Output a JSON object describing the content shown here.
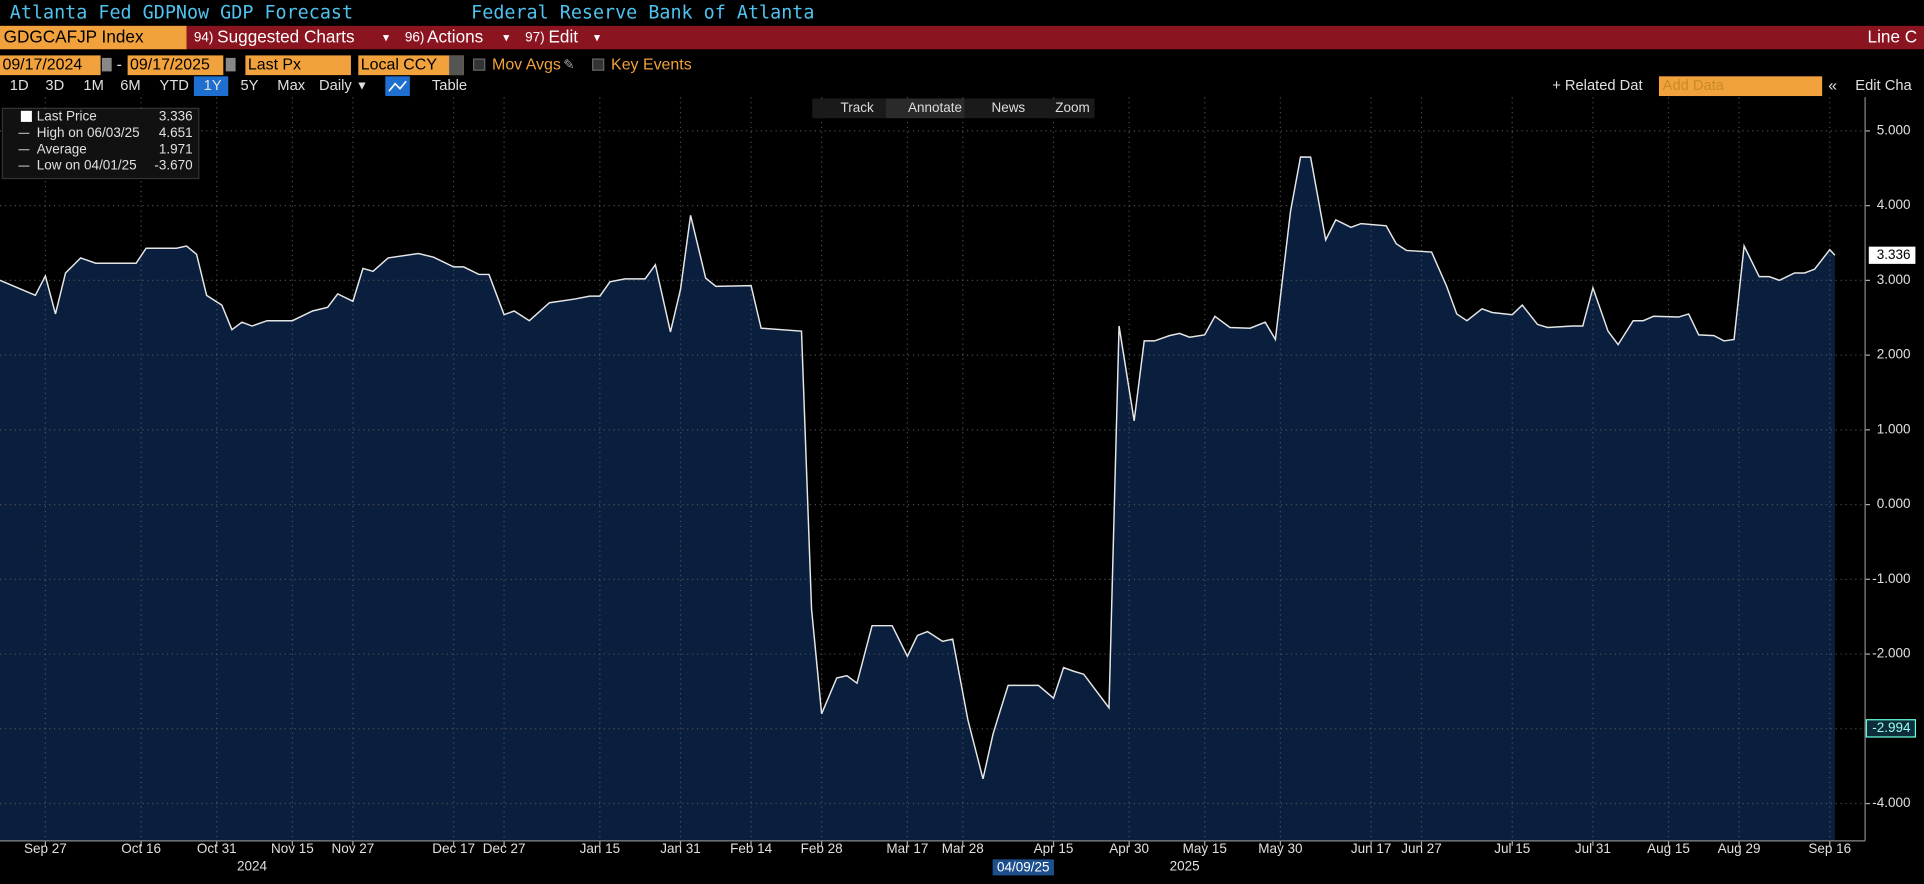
{
  "header": {
    "title": "Atlanta Fed GDPNow GDP Forecast",
    "source": "Federal Reserve Bank of Atlanta"
  },
  "toolbar": {
    "ticker": "GDGCAFJP Index",
    "menus": [
      {
        "key": "94)",
        "label": "Suggested Charts"
      },
      {
        "key": "96)",
        "label": "Actions"
      },
      {
        "key": "97)",
        "label": "Edit"
      }
    ],
    "right": "Line C"
  },
  "controls": {
    "start": "09/17/2024",
    "separator": "-",
    "end": "09/17/2025",
    "field": "Last Px",
    "currency": "Local CCY",
    "options": [
      "Mov Avgs",
      "Key Events"
    ]
  },
  "ranges": [
    "1D",
    "3D",
    "1M",
    "6M",
    "YTD",
    "1Y",
    "5Y",
    "Max"
  ],
  "frequency": "Daily",
  "table": "Table",
  "related": "+ Related Dat",
  "add_data": "Add Data",
  "edit_chart": "Edit Cha",
  "chart_tools": [
    "Track",
    "Annotate",
    "News",
    "Zoom"
  ],
  "legend": [
    {
      "label": "Last Price",
      "value": "3.336"
    },
    {
      "label": "High on 06/03/25",
      "value": "4.651"
    },
    {
      "label": "Average",
      "value": "1.971"
    },
    {
      "label": "Low on 04/01/25",
      "value": "-3.670"
    }
  ],
  "chart_data": {
    "type": "area",
    "name": "Last Price",
    "color": "#e6e6e6",
    "fill": "#0a1f3d",
    "grid": true,
    "x": [
      1,
      8,
      10,
      12,
      14,
      17,
      20,
      28,
      30,
      36,
      38,
      40,
      42,
      45,
      47,
      49,
      51,
      54,
      59,
      63,
      66,
      68,
      71,
      73,
      75,
      78,
      84,
      87,
      91,
      93,
      96,
      98,
      101,
      103,
      106,
      110,
      115,
      118,
      120,
      122,
      125,
      129,
      131,
      134,
      136,
      138,
      141,
      143,
      150,
      152,
      160,
      162,
      164,
      167,
      169,
      171,
      174,
      178,
      181,
      183,
      185,
      188,
      190,
      193,
      196,
      198,
      199,
      201,
      207,
      210,
      212,
      214,
      216,
      221,
      223,
      226,
      228,
      230,
      233,
      235,
      237,
      240,
      242,
      245,
      249,
      252,
      254,
      257,
      259,
      261,
      264,
      266,
      269,
      271,
      276,
      278,
      280,
      285,
      288,
      290,
      292,
      295,
      297,
      301,
      303,
      306,
      308,
      313,
      315,
      317,
      320,
      322,
      325,
      327,
      329,
      334,
      336,
      338,
      341,
      343,
      345,
      347,
      350,
      352,
      354,
      357,
      359,
      361,
      364,
      365
    ],
    "values": [
      3.0,
      2.8,
      3.06,
      2.55,
      3.1,
      3.3,
      3.23,
      3.23,
      3.43,
      3.43,
      3.46,
      3.35,
      2.8,
      2.67,
      2.34,
      2.44,
      2.39,
      2.46,
      2.46,
      2.59,
      2.64,
      2.82,
      2.72,
      3.16,
      3.12,
      3.3,
      3.36,
      3.31,
      3.18,
      3.18,
      3.08,
      3.08,
      2.54,
      2.59,
      2.46,
      2.7,
      2.75,
      2.79,
      2.79,
      2.98,
      3.02,
      3.02,
      3.21,
      2.31,
      2.88,
      3.87,
      3.03,
      2.92,
      2.93,
      2.36,
      2.32,
      -1.4,
      -2.8,
      -2.32,
      -2.29,
      -2.39,
      -1.62,
      -1.62,
      -2.03,
      -1.75,
      -1.7,
      -1.83,
      -1.8,
      -2.88,
      -3.67,
      -3.07,
      -2.85,
      -2.42,
      -2.42,
      -2.59,
      -2.18,
      -2.23,
      -2.27,
      -2.72,
      2.39,
      1.12,
      2.19,
      2.19,
      2.26,
      2.29,
      2.24,
      2.27,
      2.52,
      2.37,
      2.36,
      2.44,
      2.21,
      3.92,
      4.651,
      4.65,
      3.54,
      3.81,
      3.71,
      3.76,
      3.73,
      3.49,
      3.4,
      3.38,
      2.92,
      2.55,
      2.46,
      2.62,
      2.57,
      2.54,
      2.67,
      2.41,
      2.37,
      2.39,
      2.39,
      2.9,
      2.32,
      2.14,
      2.46,
      2.46,
      2.52,
      2.51,
      2.55,
      2.27,
      2.26,
      2.19,
      2.21,
      3.46,
      3.05,
      3.05,
      3.0,
      3.1,
      3.1,
      3.15,
      3.41,
      3.336
    ],
    "xlim": [
      1,
      371
    ],
    "xticks": [
      {
        "value": 10,
        "label": "Sep 27"
      },
      {
        "value": 29,
        "label": "Oct 16"
      },
      {
        "value": 44,
        "label": "Oct 31"
      },
      {
        "value": 59,
        "label": "Nov 15"
      },
      {
        "value": 71,
        "label": "Nov 27"
      },
      {
        "value": 91,
        "label": "Dec 17"
      },
      {
        "value": 101,
        "label": "Dec 27"
      },
      {
        "value": 120,
        "label": "Jan 15"
      },
      {
        "value": 136,
        "label": "Jan 31"
      },
      {
        "value": 150,
        "label": "Feb 14"
      },
      {
        "value": 164,
        "label": "Feb 28"
      },
      {
        "value": 181,
        "label": "Mar 17"
      },
      {
        "value": 192,
        "label": "Mar 28"
      },
      {
        "value": 210,
        "label": "Apr 15"
      },
      {
        "value": 225,
        "label": "Apr 30"
      },
      {
        "value": 240,
        "label": "May 15"
      },
      {
        "value": 255,
        "label": "May 30"
      },
      {
        "value": 273,
        "label": "Jun 17"
      },
      {
        "value": 283,
        "label": "Jun 27"
      },
      {
        "value": 301,
        "label": "Jul 15"
      },
      {
        "value": 317,
        "label": "Jul 31"
      },
      {
        "value": 332,
        "label": "Aug 15"
      },
      {
        "value": 346,
        "label": "Aug 29"
      },
      {
        "value": 364,
        "label": "Sep 16"
      }
    ],
    "year_labels": [
      {
        "value": 51,
        "label": "2024"
      },
      {
        "value": 236,
        "label": "2025"
      }
    ],
    "ylim": [
      -4.5,
      5.45
    ],
    "yticks": [
      {
        "value": 5,
        "label": "5.000"
      },
      {
        "value": 4,
        "label": "4.000"
      },
      {
        "value": 3,
        "label": "3.000"
      },
      {
        "value": 2,
        "label": "2.000"
      },
      {
        "value": 1,
        "label": "1.000"
      },
      {
        "value": 0,
        "label": "0.000"
      },
      {
        "value": -1,
        "label": "-1.000"
      },
      {
        "value": -2,
        "label": "-2.000"
      },
      {
        "value": -3,
        "label": "-3.000"
      },
      {
        "value": -4,
        "label": "-4.000"
      }
    ],
    "cursor": {
      "x": 204,
      "x_label": "04/09/25",
      "y": -2.994
    }
  }
}
